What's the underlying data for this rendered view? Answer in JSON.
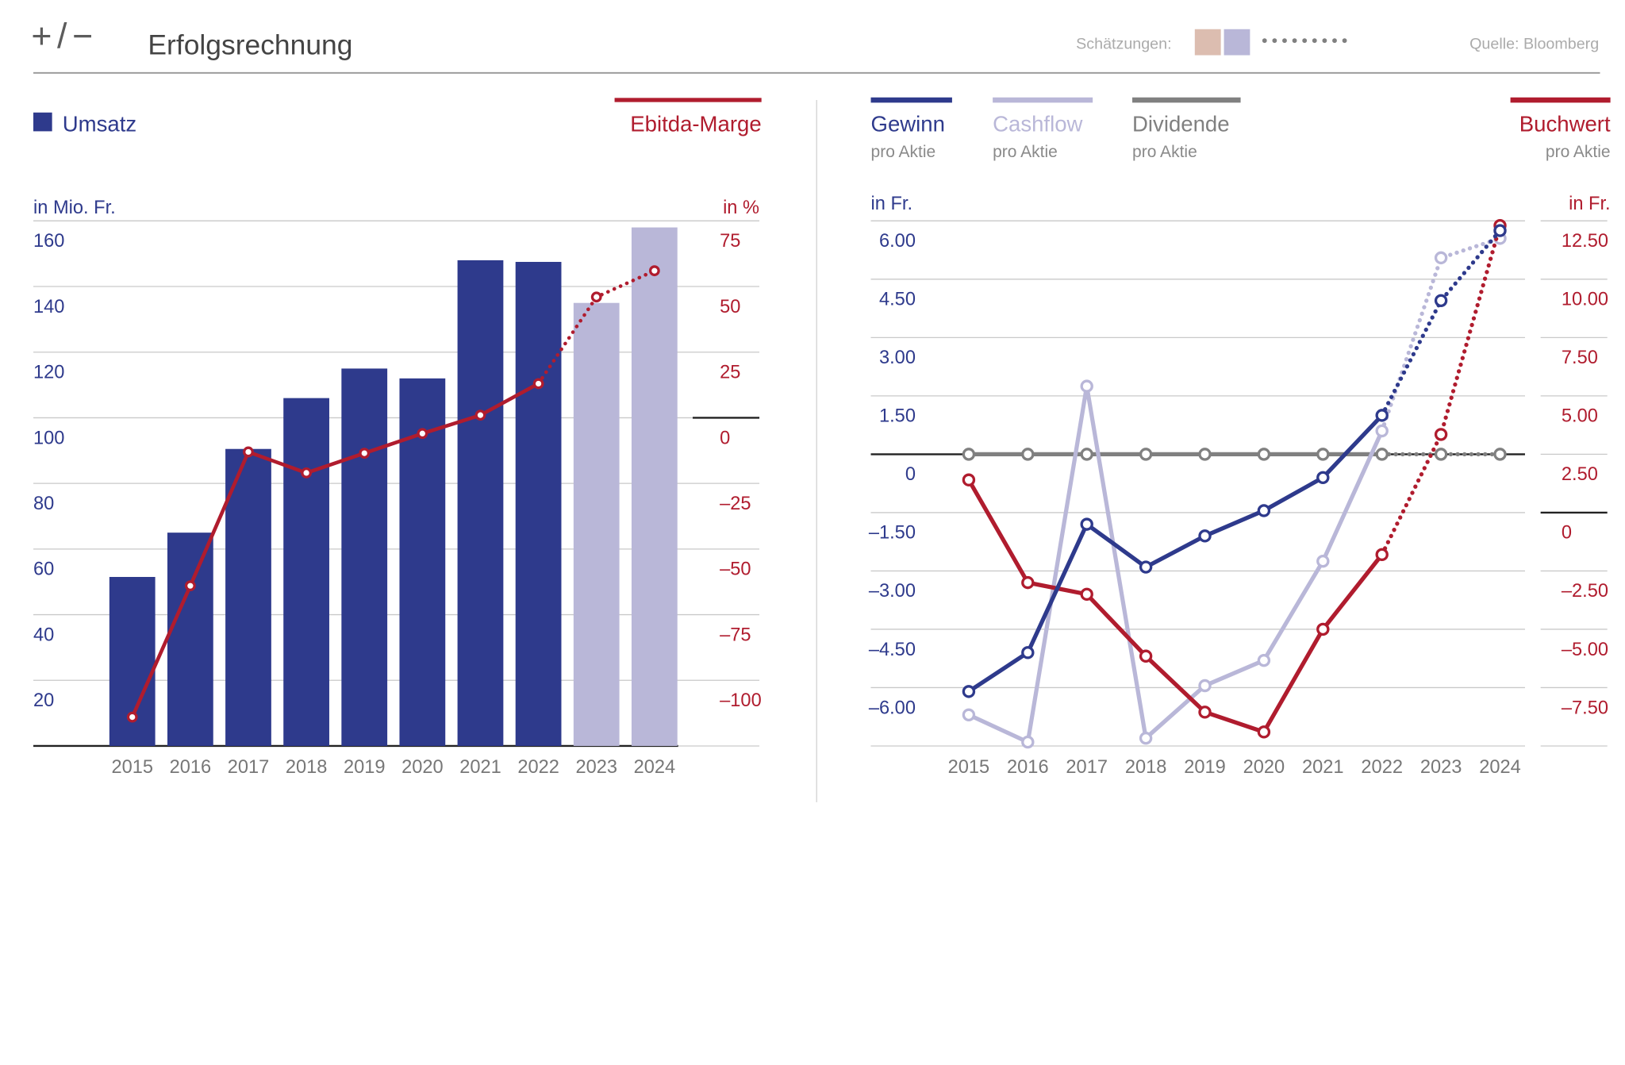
{
  "header": {
    "logo": "+/−",
    "title": "Erfolgsrechnung",
    "estimates_label": "Schätzungen:",
    "estimate_swatch_colors": [
      "#dcbdb0",
      "#b9b7d8"
    ],
    "source": "Quelle: Bloomberg"
  },
  "chart_data": [
    {
      "type": "bar",
      "categories": [
        "2015",
        "2016",
        "2017",
        "2018",
        "2019",
        "2020",
        "2021",
        "2022",
        "2023",
        "2024"
      ],
      "estimated": [
        false,
        false,
        false,
        false,
        false,
        false,
        false,
        false,
        true,
        true
      ],
      "grid": true,
      "y_left": {
        "label": "in Mio. Fr.",
        "range": [
          0,
          160
        ],
        "tick_values": [
          160,
          140,
          120,
          100,
          80,
          60,
          40,
          20
        ],
        "tick_labels": [
          "160",
          "140",
          "120",
          "100",
          "80",
          "60",
          "40",
          "20"
        ],
        "color": "#2e3a8c"
      },
      "y_right": {
        "label": "in %",
        "range": [
          -125,
          75
        ],
        "tick_values": [
          75,
          50,
          25,
          0,
          -25,
          -50,
          -75,
          -100
        ],
        "tick_labels": [
          "75",
          "50",
          "25",
          "0",
          "–25",
          "–50",
          "–75",
          "–100"
        ],
        "color": "#b01c2e"
      },
      "series": [
        {
          "name": "Umsatz",
          "type": "bar",
          "right_axis": false,
          "color": "#2e3a8c",
          "estimate_color": "#b9b7d8",
          "values": [
            51.5,
            65,
            90.5,
            106,
            115,
            112,
            148,
            147.5,
            135,
            158
          ]
        },
        {
          "name": "Ebitda-Marge",
          "type": "line",
          "right_axis": true,
          "color": "#b01c2e",
          "values": [
            -114,
            -64,
            -13,
            -21,
            -13.5,
            -6,
            1,
            13,
            46,
            56
          ]
        }
      ]
    },
    {
      "type": "line",
      "categories": [
        "2015",
        "2016",
        "2017",
        "2018",
        "2019",
        "2020",
        "2021",
        "2022",
        "2023",
        "2024"
      ],
      "estimated": [
        false,
        false,
        false,
        false,
        false,
        false,
        false,
        false,
        true,
        true
      ],
      "grid": true,
      "y_left": {
        "label": "in Fr.",
        "range": [
          -7.5,
          6
        ],
        "tick_values": [
          6,
          4.5,
          3,
          1.5,
          0,
          -1.5,
          -3,
          -4.5,
          -6
        ],
        "tick_labels": [
          "6.00",
          "4.50",
          "3.00",
          "1.50",
          "0",
          "–1.50",
          "–3.00",
          "–4.50",
          "–6.00"
        ],
        "color": "#2e3a8c"
      },
      "y_right": {
        "label": "in Fr.",
        "range": [
          -10,
          12.5
        ],
        "tick_values": [
          12.5,
          10,
          7.5,
          5,
          2.5,
          0,
          -2.5,
          -5,
          -7.5
        ],
        "tick_labels": [
          "12.50",
          "10.00",
          "7.50",
          "5.00",
          "2.50",
          "0",
          "–2.50",
          "–5.00",
          "–7.50"
        ],
        "color": "#b01c2e"
      },
      "series": [
        {
          "name": "Gewinn",
          "subtitle": "pro Aktie",
          "type": "line",
          "right_axis": false,
          "color": "#2e3a8c",
          "values": [
            -6.1,
            -5.1,
            -1.8,
            -2.9,
            -2.1,
            -1.45,
            -0.6,
            1.0,
            3.95,
            5.75
          ]
        },
        {
          "name": "Cashflow",
          "subtitle": "pro Aktie",
          "type": "line",
          "right_axis": false,
          "color": "#b9b7d8",
          "values": [
            -6.7,
            -7.4,
            1.75,
            -7.3,
            -5.95,
            -5.3,
            -2.75,
            0.6,
            5.05,
            5.55
          ]
        },
        {
          "name": "Dividende",
          "subtitle": "pro Aktie",
          "type": "line",
          "right_axis": false,
          "color": "#808080",
          "values": [
            0,
            0,
            0,
            0,
            0,
            0,
            0,
            0,
            0,
            0
          ]
        },
        {
          "name": "Buchwert",
          "subtitle": "pro Aktie",
          "type": "line",
          "right_axis": true,
          "color": "#b01c2e",
          "values": [
            1.4,
            -3.0,
            -3.5,
            -6.15,
            -8.55,
            -9.4,
            -5.0,
            -1.8,
            3.35,
            12.3
          ]
        }
      ]
    }
  ]
}
